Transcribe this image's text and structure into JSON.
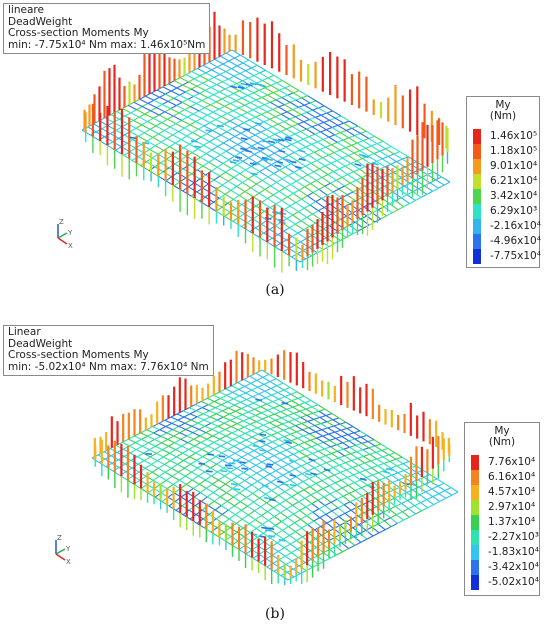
{
  "panels": [
    {
      "caption": "(a)",
      "info": {
        "line1": "lineare",
        "line2": "DeadWeight",
        "line3": "Cross-section Moments My",
        "line4": "min: -7.75x10⁴ Nm max: 1.46x10⁵Nm"
      },
      "legend": {
        "title1": "My",
        "title2": "(Nm)",
        "items": [
          {
            "label": "1.46x10⁵",
            "color": "#e8251d"
          },
          {
            "label": "1.18x10⁵",
            "color": "#f25a1c"
          },
          {
            "label": "9.01x10⁴",
            "color": "#f59a1e"
          },
          {
            "label": "6.21x10⁴",
            "color": "#bfe12a"
          },
          {
            "label": "3.42x10⁴",
            "color": "#4fd64f"
          },
          {
            "label": "6.29x10³",
            "color": "#2ee3c8"
          },
          {
            "label": "-2.16x10⁴",
            "color": "#33b4ef"
          },
          {
            "label": "-4.96x10⁴",
            "color": "#2a73e8"
          },
          {
            "label": "-7.75x10⁴",
            "color": "#1230d8"
          }
        ]
      },
      "axes": {
        "z": "Z",
        "y": "Y",
        "x": "X"
      }
    },
    {
      "caption": "(b)",
      "info": {
        "line1": "Linear",
        "line2": "DeadWeight",
        "line3": "Cross-section Moments My",
        "line4": "min: -5.02x10⁴ Nm max: 7.76x10⁴ Nm"
      },
      "legend": {
        "title1": "My",
        "title2": "(Nm)",
        "items": [
          {
            "label": "7.76x10⁴",
            "color": "#e8251d"
          },
          {
            "label": "6.16x10⁴",
            "color": "#f5831e"
          },
          {
            "label": "4.57x10⁴",
            "color": "#f5b21e"
          },
          {
            "label": "2.97x10⁴",
            "color": "#9ee22c"
          },
          {
            "label": "1.37x10⁴",
            "color": "#38d050"
          },
          {
            "label": "-2.27x10³",
            "color": "#2ee3b0"
          },
          {
            "label": "-1.83x10⁴",
            "color": "#33c4ef"
          },
          {
            "label": "-3.42x10⁴",
            "color": "#2a73e8"
          },
          {
            "label": "-5.02x10⁴",
            "color": "#1230d8"
          }
        ]
      },
      "axes": {
        "z": "Z",
        "y": "Y",
        "x": "X"
      }
    }
  ]
}
